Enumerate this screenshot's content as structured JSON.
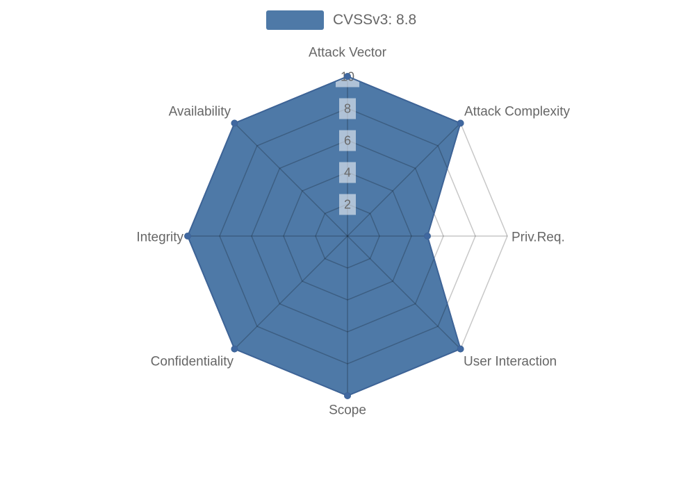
{
  "chart_data": {
    "type": "radar",
    "title": "",
    "legend_label": "CVSSv3: 8.8",
    "legend_position": "top",
    "axes": [
      "Attack Vector",
      "Attack Complexity",
      "Priv.Req.",
      "User Interaction",
      "Scope",
      "Confidentiality",
      "Integrity",
      "Availability"
    ],
    "series": [
      {
        "name": "CVSSv3: 8.8",
        "values": [
          10,
          10,
          5,
          10,
          10,
          10,
          10,
          10
        ]
      }
    ],
    "radial_ticks": [
      2,
      4,
      6,
      8,
      10
    ],
    "range": [
      0,
      10
    ],
    "grid": true
  },
  "colors": {
    "accent": "#4e79a7",
    "series_fill": "#4e79a7",
    "series_stroke": "#3d6396",
    "marker": "#4068a0",
    "grid_line": "rgba(0,0,0,0.22)",
    "axis_label_text": "#666666",
    "tick_text": "#696969",
    "tick_box": "rgba(255,255,255,0.55)",
    "legend_text": "#666666"
  }
}
